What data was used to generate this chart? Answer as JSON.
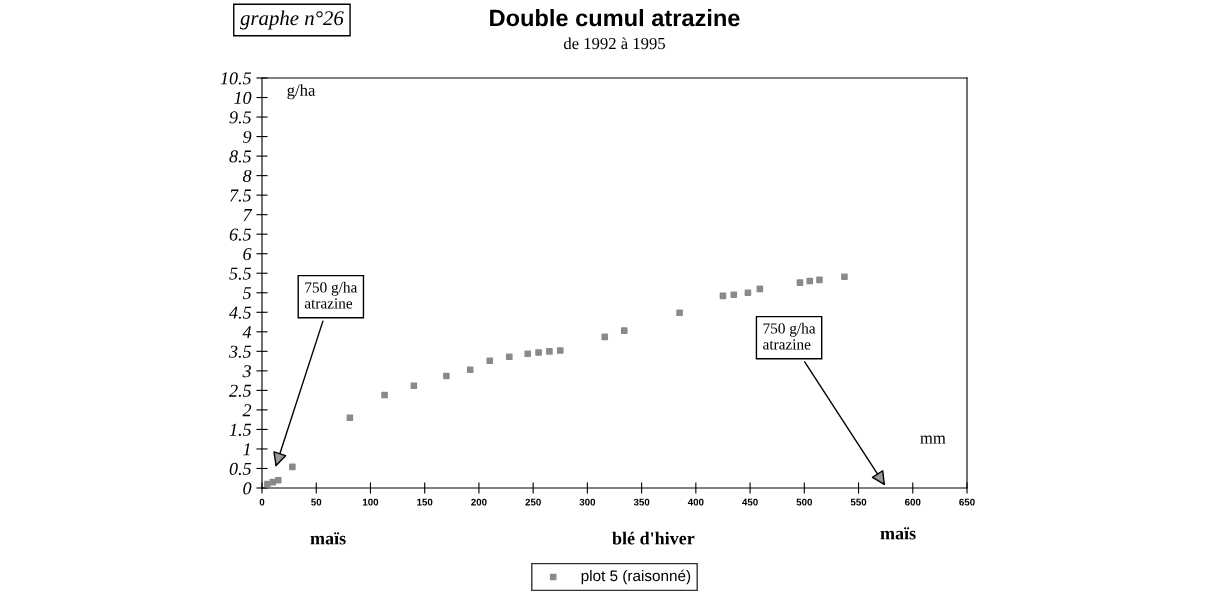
{
  "chart_data": {
    "type": "scatter",
    "title": "Double cumul atrazine",
    "subtitle": "de 1992 à 1995",
    "xlabel": "mm",
    "ylabel": "g/ha",
    "annotations": [
      "graphe n°26",
      "750 g/ha\natrazine",
      "750 g/ha\natrazine",
      "maïs",
      "blé d'hiver",
      "maïs"
    ],
    "series": [
      {
        "name": "plot 5 (raisonné)",
        "color": "#8a8a8a",
        "x": [
          5,
          10,
          15,
          28,
          81,
          113,
          140,
          170,
          192,
          210,
          228,
          245,
          255,
          265,
          275,
          316,
          334,
          385,
          425,
          435,
          448,
          459,
          496,
          505,
          514,
          537
        ],
        "values": [
          0.1,
          0.15,
          0.2,
          0.54,
          1.8,
          2.38,
          2.62,
          2.87,
          3.03,
          3.26,
          3.36,
          3.44,
          3.47,
          3.5,
          3.52,
          3.87,
          4.03,
          4.49,
          4.92,
          4.95,
          5.0,
          5.1,
          5.26,
          5.3,
          5.33,
          5.41
        ]
      }
    ],
    "xlim": [
      0,
      650
    ],
    "xticks": [
      0,
      50,
      100,
      150,
      200,
      250,
      300,
      350,
      400,
      450,
      500,
      550,
      600,
      650
    ],
    "ylim": [
      0,
      10.5
    ],
    "yticks": [
      0,
      0.5,
      1,
      1.5,
      2,
      2.5,
      3,
      3.5,
      4,
      4.5,
      5,
      5.5,
      6,
      6.5,
      7,
      7.5,
      8,
      8.5,
      9,
      9.5,
      10,
      10.5
    ],
    "marker": "square",
    "legend": "bottom",
    "grid": false
  }
}
